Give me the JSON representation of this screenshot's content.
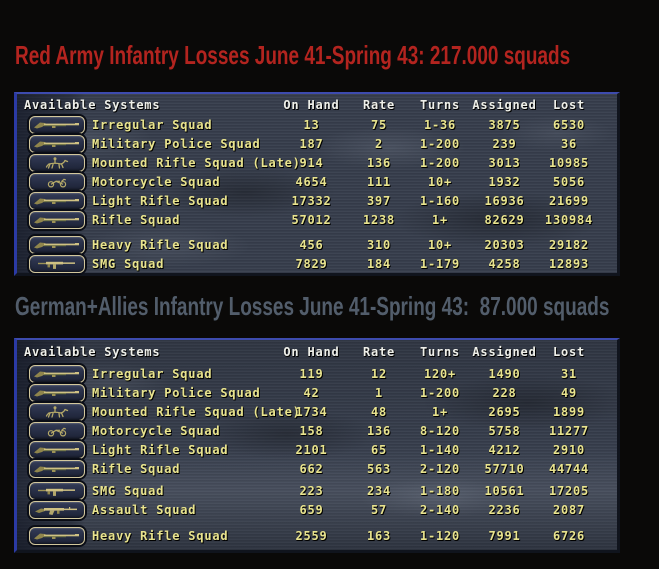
{
  "theme": {
    "page_background": "#0a0908",
    "row_text_color": "#e9e48e",
    "header_text_color": "#eff0ea",
    "button_border_color": "#d2c79c",
    "panel_border_blue": "#3d4bae"
  },
  "sections": [
    {
      "title": "Red Army Infantry Losses June 41-Spring 43: 217.000 squads",
      "title_color": "#b3241f",
      "columns": [
        "Available Systems",
        "On Hand",
        "Rate",
        "Turns",
        "Assigned",
        "Lost"
      ],
      "rows": [
        {
          "icon": "rifle",
          "name": "Irregular Squad",
          "on_hand": "13",
          "rate": "75",
          "turns": "1-36",
          "assigned": "3875",
          "lost": "6530",
          "gap_before": 0
        },
        {
          "icon": "rifle",
          "name": "Military Police Squad",
          "on_hand": "187",
          "rate": "2",
          "turns": "1-200",
          "assigned": "239",
          "lost": "36",
          "gap_before": 0
        },
        {
          "icon": "cavalry",
          "name": "Mounted Rifle Squad (Late)",
          "on_hand": "914",
          "rate": "136",
          "turns": "1-200",
          "assigned": "3013",
          "lost": "10985",
          "gap_before": 0
        },
        {
          "icon": "motorcycle",
          "name": "Motorcycle Squad",
          "on_hand": "4654",
          "rate": "111",
          "turns": "10+",
          "assigned": "1932",
          "lost": "5056",
          "gap_before": 0
        },
        {
          "icon": "rifle",
          "name": "Light Rifle Squad",
          "on_hand": "17332",
          "rate": "397",
          "turns": "1-160",
          "assigned": "16936",
          "lost": "21699",
          "gap_before": 0
        },
        {
          "icon": "rifle",
          "name": "Rifle Squad",
          "on_hand": "57012",
          "rate": "1238",
          "turns": "1+",
          "assigned": "82629",
          "lost": "130984",
          "gap_before": 0
        },
        {
          "icon": "rifle",
          "name": "Heavy Rifle Squad",
          "on_hand": "456",
          "rate": "310",
          "turns": "10+",
          "assigned": "20303",
          "lost": "29182",
          "gap_before": 6
        },
        {
          "icon": "smg",
          "name": "SMG Squad",
          "on_hand": "7829",
          "rate": "184",
          "turns": "1-179",
          "assigned": "4258",
          "lost": "12893",
          "gap_before": 0
        }
      ]
    },
    {
      "title": "German+Allies Infantry Losses June 41-Spring 43:  87.000 squads",
      "title_color": "#525d6b",
      "columns": [
        "Available Systems",
        "On Hand",
        "Rate",
        "Turns",
        "Assigned",
        "Lost"
      ],
      "rows": [
        {
          "icon": "rifle",
          "name": "Irregular Squad",
          "on_hand": "119",
          "rate": "12",
          "turns": "120+",
          "assigned": "1490",
          "lost": "31",
          "gap_before": 0
        },
        {
          "icon": "rifle",
          "name": "Military Police Squad",
          "on_hand": "42",
          "rate": "1",
          "turns": "1-200",
          "assigned": "228",
          "lost": "49",
          "gap_before": 0
        },
        {
          "icon": "cavalry",
          "name": "Mounted Rifle Squad (Late)",
          "on_hand": "1734",
          "rate": "48",
          "turns": "1+",
          "assigned": "2695",
          "lost": "1899",
          "gap_before": 0
        },
        {
          "icon": "motorcycle",
          "name": "Motorcycle Squad",
          "on_hand": "158",
          "rate": "136",
          "turns": "8-120",
          "assigned": "5758",
          "lost": "11277",
          "gap_before": 0
        },
        {
          "icon": "rifle",
          "name": "Light Rifle Squad",
          "on_hand": "2101",
          "rate": "65",
          "turns": "1-140",
          "assigned": "4212",
          "lost": "2910",
          "gap_before": 0
        },
        {
          "icon": "rifle",
          "name": "Rifle Squad",
          "on_hand": "662",
          "rate": "563",
          "turns": "2-120",
          "assigned": "57710",
          "lost": "44744",
          "gap_before": 0
        },
        {
          "icon": "smg",
          "name": "SMG Squad",
          "on_hand": "223",
          "rate": "234",
          "turns": "1-180",
          "assigned": "10561",
          "lost": "17205",
          "gap_before": 3
        },
        {
          "icon": "assault",
          "name": "Assault Squad",
          "on_hand": "659",
          "rate": "57",
          "turns": "2-140",
          "assigned": "2236",
          "lost": "2087",
          "gap_before": 0
        },
        {
          "icon": "rifle",
          "name": "Heavy Rifle Squad",
          "on_hand": "2559",
          "rate": "163",
          "turns": "1-120",
          "assigned": "7991",
          "lost": "6726",
          "gap_before": 7
        }
      ]
    }
  ]
}
